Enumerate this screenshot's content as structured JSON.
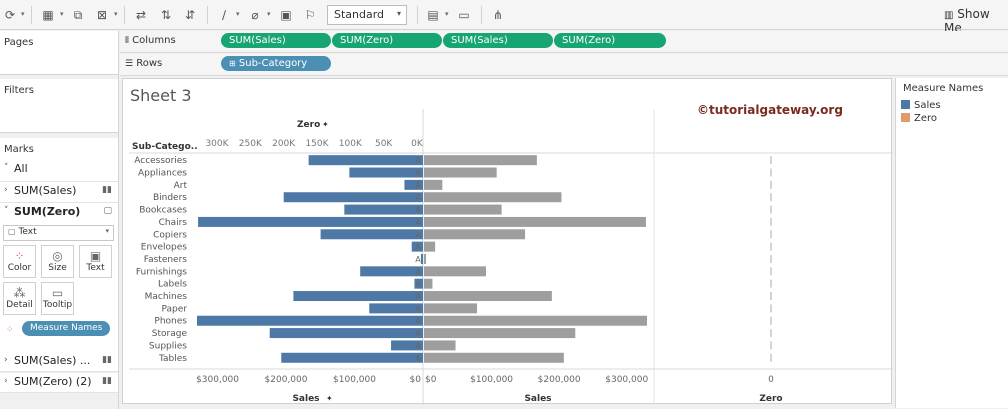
{
  "toolbar": {
    "mark_type_select": "Standard",
    "show_me_label": "Show Me"
  },
  "left": {
    "pages_title": "Pages",
    "filters_title": "Filters",
    "marks_title": "Marks",
    "marks_rows": [
      {
        "label": "All",
        "bold": false
      },
      {
        "label": "SUM(Sales)",
        "bold": false
      },
      {
        "label": "SUM(Zero)",
        "bold": true
      }
    ],
    "marktype_select": "Text",
    "mark_buttons": [
      "Color",
      "Size",
      "Text",
      "Detail",
      "Tooltip"
    ],
    "measure_names_pill": "Measure Names",
    "bottom_rows": [
      "SUM(Sales) ...",
      "SUM(Zero) (2)"
    ]
  },
  "shelves": {
    "columns_label": "Columns",
    "rows_label": "Rows",
    "column_pills": [
      "SUM(Sales)",
      "SUM(Zero)",
      "SUM(Sales)",
      "SUM(Zero)"
    ],
    "row_pill": "Sub-Category"
  },
  "sheet": {
    "title": "Sheet 3",
    "watermark": "©tutorialgateway.org"
  },
  "legend": {
    "title": "Measure Names",
    "items": [
      {
        "label": "Sales",
        "color": "#4e79a7"
      },
      {
        "label": "Zero",
        "color": "#e09b6c"
      }
    ]
  },
  "chart_data": {
    "type": "bar",
    "row_header": "Sub-Catego..",
    "categories": [
      "Accessories",
      "Appliances",
      "Art",
      "Binders",
      "Bookcases",
      "Chairs",
      "Copiers",
      "Envelopes",
      "Fasteners",
      "Furnishings",
      "Labels",
      "Machines",
      "Paper",
      "Phones",
      "Storage",
      "Supplies",
      "Tables"
    ],
    "series": [
      {
        "name": "Sales",
        "values": [
          167026,
          107532,
          27119,
          203413,
          114880,
          328449,
          149528,
          16476,
          3024,
          91705,
          12486,
          189239,
          78479,
          330007,
          223844,
          46674,
          206966
        ]
      },
      {
        "name": "Zero",
        "values": [
          0,
          0,
          0,
          0,
          0,
          0,
          0,
          0,
          0,
          0,
          0,
          0,
          0,
          0,
          0,
          0,
          0
        ]
      }
    ],
    "panes": [
      {
        "title": "Sales",
        "reversed": true,
        "color": "#4e79a7",
        "ticks": [
          "$300,000",
          "$200,000",
          "$100,000",
          "$0"
        ],
        "top_title": "Zero",
        "top_ticks": [
          "300K",
          "250K",
          "200K",
          "150K",
          "100K",
          "50K",
          "0K"
        ]
      },
      {
        "title": "Sales",
        "reversed": false,
        "color": "#9e9e9e",
        "ticks": [
          "$0",
          "$100,000",
          "$200,000",
          "$300,000"
        ]
      },
      {
        "title": "Zero",
        "reversed": false,
        "ticks": [
          "0"
        ]
      }
    ],
    "mark_label": "A",
    "xlim": [
      0,
      330000
    ]
  }
}
